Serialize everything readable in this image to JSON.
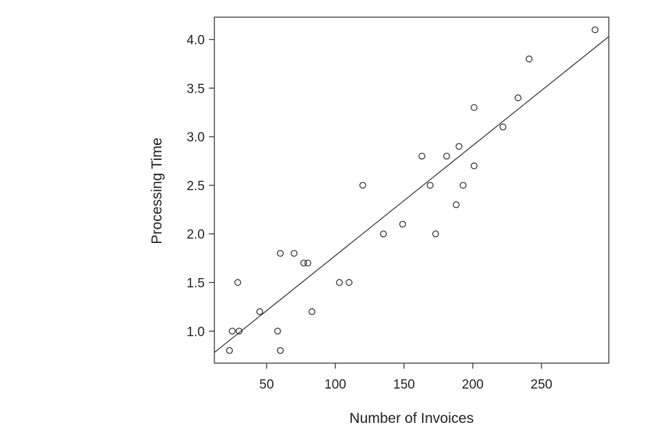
{
  "chart_data": {
    "type": "scatter",
    "title": "",
    "xlabel": "Number of Invoices",
    "ylabel": "Processing Time",
    "xlim": [
      12,
      299
    ],
    "ylim": [
      0.67,
      4.23
    ],
    "xticks": [
      50,
      100,
      150,
      200,
      250
    ],
    "xtick_labels": [
      "50",
      "100",
      "150",
      "200",
      "250"
    ],
    "yticks": [
      1.0,
      1.5,
      2.0,
      2.5,
      3.0,
      3.5,
      4.0
    ],
    "ytick_labels": [
      "1.0",
      "1.5",
      "2.0",
      "2.5",
      "3.0",
      "3.5",
      "4.0"
    ],
    "grid": false,
    "series": [
      {
        "marker": "open-circle",
        "points": [
          {
            "x": 23,
            "y": 0.8
          },
          {
            "x": 25,
            "y": 1.0
          },
          {
            "x": 29,
            "y": 1.5
          },
          {
            "x": 30,
            "y": 1.0
          },
          {
            "x": 45,
            "y": 1.2
          },
          {
            "x": 58,
            "y": 1.0
          },
          {
            "x": 60,
            "y": 1.8
          },
          {
            "x": 60,
            "y": 0.8
          },
          {
            "x": 70,
            "y": 1.8
          },
          {
            "x": 77,
            "y": 1.7
          },
          {
            "x": 80,
            "y": 1.7
          },
          {
            "x": 83,
            "y": 1.2
          },
          {
            "x": 103,
            "y": 1.5
          },
          {
            "x": 110,
            "y": 1.5
          },
          {
            "x": 120,
            "y": 2.5
          },
          {
            "x": 135,
            "y": 2.0
          },
          {
            "x": 149,
            "y": 2.1
          },
          {
            "x": 163,
            "y": 2.8
          },
          {
            "x": 169,
            "y": 2.5
          },
          {
            "x": 173,
            "y": 2.0
          },
          {
            "x": 181,
            "y": 2.8
          },
          {
            "x": 188,
            "y": 2.3
          },
          {
            "x": 190,
            "y": 2.9
          },
          {
            "x": 193,
            "y": 2.5
          },
          {
            "x": 201,
            "y": 3.3
          },
          {
            "x": 201,
            "y": 2.7
          },
          {
            "x": 222,
            "y": 3.1
          },
          {
            "x": 233,
            "y": 3.4
          },
          {
            "x": 241,
            "y": 3.8
          },
          {
            "x": 289,
            "y": 4.1
          }
        ]
      }
    ],
    "fit_line": {
      "x": [
        12,
        299
      ],
      "y": [
        0.78,
        4.03
      ]
    },
    "colors": {
      "marker_stroke": "#333333",
      "line": "#333333",
      "axis": "#333333"
    }
  }
}
